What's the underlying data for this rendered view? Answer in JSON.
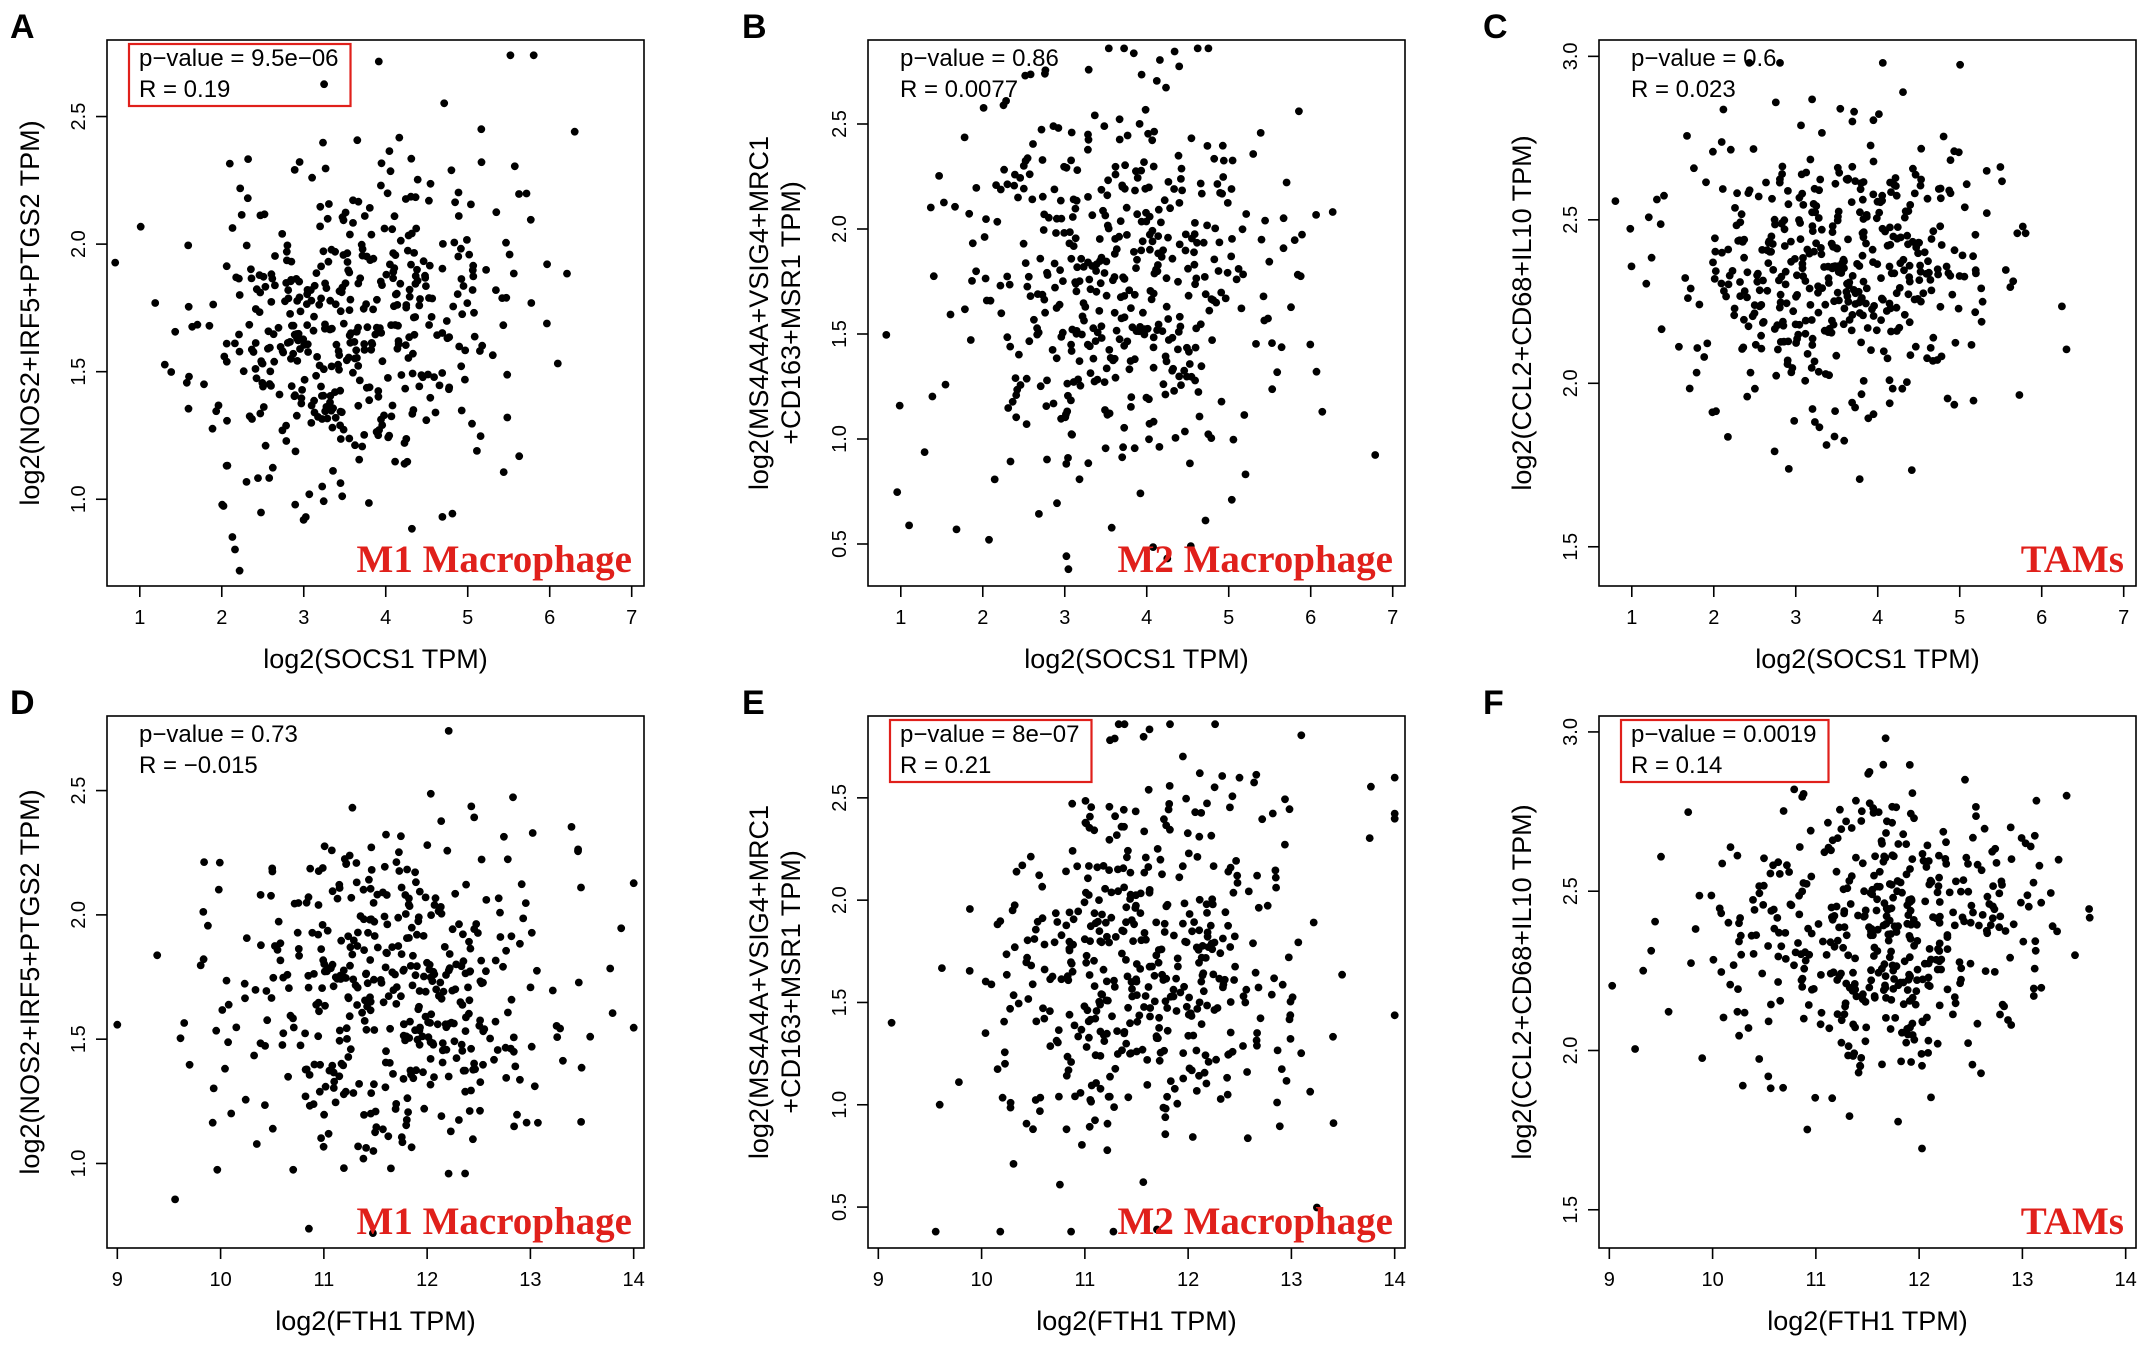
{
  "figure": {
    "accent_color": "#e0201b",
    "point_color": "#000000",
    "background": "#ffffff"
  },
  "chart_data": [
    {
      "type": "scatter",
      "panel": "A",
      "xlabel": "log2(SOCS1 TPM)",
      "ylabel": [
        "log2(NOS2+IRF5+PTGS2 TPM)"
      ],
      "xlim": [
        0.6,
        7.15
      ],
      "ylim": [
        0.66,
        2.8
      ],
      "xticks": [
        1,
        2,
        3,
        4,
        5,
        6,
        7
      ],
      "yticks": [
        1.0,
        1.5,
        2.0,
        2.5
      ],
      "ytick_labels": [
        "1.0",
        "1.5",
        "2.0",
        "2.5"
      ],
      "stats": {
        "pvalue": "p−value = 9.5e−06",
        "r": "R = 0.19",
        "boxed": true
      },
      "cell_label": "M1 Macrophage",
      "label_color": "#e0201b",
      "n_points": 470,
      "seed": 11,
      "x_mean": 3.55,
      "x_sd": 0.95,
      "y_mean": 1.68,
      "y_sd": 0.33,
      "r": 0.19,
      "x_range": [
        0.7,
        7.0
      ],
      "y_range": [
        0.72,
        2.74
      ]
    },
    {
      "type": "scatter",
      "panel": "B",
      "xlabel": "log2(SOCS1 TPM)",
      "ylabel": [
        "log2(MS4A4A+VSIG4+MRC1",
        "+CD163+MSR1 TPM)"
      ],
      "xlim": [
        0.6,
        7.15
      ],
      "ylim": [
        0.3,
        2.9
      ],
      "xticks": [
        1,
        2,
        3,
        4,
        5,
        6,
        7
      ],
      "yticks": [
        0.5,
        1.0,
        1.5,
        2.0,
        2.5
      ],
      "ytick_labels": [
        "0.5",
        "1.0",
        "1.5",
        "2.0",
        "2.5"
      ],
      "stats": {
        "pvalue": "p−value = 0.86",
        "r": "R = 0.0077",
        "boxed": false
      },
      "cell_label": "M2 Macrophage",
      "label_color": "#e0201b",
      "n_points": 470,
      "seed": 23,
      "x_mean": 3.55,
      "x_sd": 0.95,
      "y_mean": 1.72,
      "y_sd": 0.5,
      "r": 0.0077,
      "x_range": [
        0.7,
        7.0
      ],
      "y_range": [
        0.38,
        2.86
      ]
    },
    {
      "type": "scatter",
      "panel": "C",
      "xlabel": "log2(SOCS1 TPM)",
      "ylabel": [
        "log2(CCL2+CD68+IL10 TPM)"
      ],
      "xlim": [
        0.6,
        7.15
      ],
      "ylim": [
        1.38,
        3.05
      ],
      "xticks": [
        1,
        2,
        3,
        4,
        5,
        6,
        7
      ],
      "yticks": [
        1.5,
        2.0,
        2.5,
        3.0
      ],
      "ytick_labels": [
        "1.5",
        "2.0",
        "2.5",
        "3.0"
      ],
      "stats": {
        "pvalue": "p−value = 0.6",
        "r": "R = 0.023",
        "boxed": false
      },
      "cell_label": "TAMs",
      "label_color": "#e0201b",
      "n_points": 470,
      "seed": 37,
      "x_mean": 3.55,
      "x_sd": 0.95,
      "y_mean": 2.35,
      "y_sd": 0.22,
      "r": 0.023,
      "x_range": [
        0.7,
        7.0
      ],
      "y_range": [
        1.4,
        2.98
      ]
    },
    {
      "type": "scatter",
      "panel": "D",
      "xlabel": "log2(FTH1 TPM)",
      "ylabel": [
        "log2(NOS2+IRF5+PTGS2 TPM)"
      ],
      "xlim": [
        8.9,
        14.1
      ],
      "ylim": [
        0.66,
        2.8
      ],
      "xticks": [
        9,
        10,
        11,
        12,
        13,
        14
      ],
      "yticks": [
        1.0,
        1.5,
        2.0,
        2.5
      ],
      "ytick_labels": [
        "1.0",
        "1.5",
        "2.0",
        "2.5"
      ],
      "stats": {
        "pvalue": "p−value = 0.73",
        "r": "R = −0.015",
        "boxed": false
      },
      "cell_label": "M1 Macrophage",
      "label_color": "#e0201b",
      "n_points": 470,
      "seed": 53,
      "x_mean": 11.6,
      "x_sd": 0.82,
      "y_mean": 1.68,
      "y_sd": 0.33,
      "r": -0.015,
      "x_range": [
        9.0,
        14.0
      ],
      "y_range": [
        0.72,
        2.74
      ]
    },
    {
      "type": "scatter",
      "panel": "E",
      "xlabel": "log2(FTH1 TPM)",
      "ylabel": [
        "log2(MS4A4A+VSIG4+MRC1",
        "+CD163+MSR1 TPM)"
      ],
      "xlim": [
        8.9,
        14.1
      ],
      "ylim": [
        0.3,
        2.9
      ],
      "xticks": [
        9,
        10,
        11,
        12,
        13,
        14
      ],
      "yticks": [
        0.5,
        1.0,
        1.5,
        2.0,
        2.5
      ],
      "ytick_labels": [
        "0.5",
        "1.0",
        "1.5",
        "2.0",
        "2.5"
      ],
      "stats": {
        "pvalue": "p−value = 8e−07",
        "r": "R = 0.21",
        "boxed": true
      },
      "cell_label": "M2 Macrophage",
      "label_color": "#e0201b",
      "n_points": 470,
      "seed": 71,
      "x_mean": 11.6,
      "x_sd": 0.82,
      "y_mean": 1.72,
      "y_sd": 0.5,
      "r": 0.21,
      "x_range": [
        8.95,
        14.0
      ],
      "y_range": [
        0.38,
        2.86
      ]
    },
    {
      "type": "scatter",
      "panel": "F",
      "xlabel": "log2(FTH1 TPM)",
      "ylabel": [
        "log2(CCL2+CD68+IL10 TPM)"
      ],
      "xlim": [
        8.9,
        14.1
      ],
      "ylim": [
        1.38,
        3.05
      ],
      "xticks": [
        9,
        10,
        11,
        12,
        13,
        14
      ],
      "yticks": [
        1.5,
        2.0,
        2.5,
        3.0
      ],
      "ytick_labels": [
        "1.5",
        "2.0",
        "2.5",
        "3.0"
      ],
      "stats": {
        "pvalue": "p−value = 0.0019",
        "r": "R = 0.14",
        "boxed": true
      },
      "cell_label": "TAMs",
      "label_color": "#e0201b",
      "n_points": 470,
      "seed": 89,
      "x_mean": 11.6,
      "x_sd": 0.82,
      "y_mean": 2.36,
      "y_sd": 0.22,
      "r": 0.14,
      "x_range": [
        9.0,
        14.0
      ],
      "y_range": [
        1.4,
        2.98
      ]
    }
  ]
}
